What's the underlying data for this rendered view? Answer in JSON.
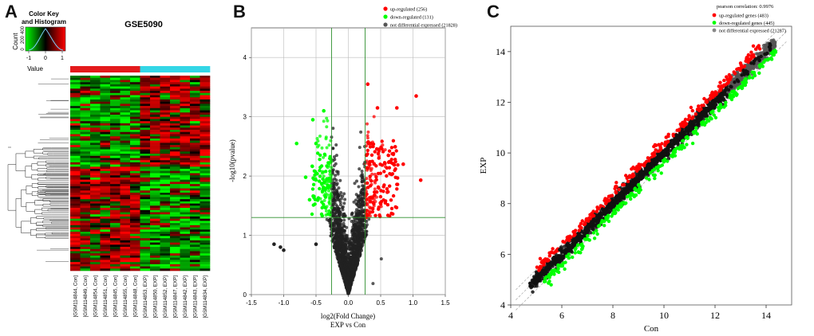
{
  "panels": {
    "a": "A",
    "b": "B",
    "c": "C"
  },
  "chart_data": [
    {
      "panel": "A",
      "type": "heatmap",
      "title": "GSE5090",
      "color_key_title": "Color Key and Histogram",
      "color_key_ylabel": "Count",
      "color_key_xlabel": "Value",
      "color_key_ticks": [
        "-1",
        "0",
        "1"
      ],
      "color_key_count_ticks": [
        "0",
        "200",
        "400"
      ],
      "colors": {
        "low": "#00ff00",
        "mid": "#000000",
        "high": "#ff0000",
        "group_con": "#e41a1c",
        "group_exp": "#33d6e6"
      },
      "samples": [
        {
          "name": "[GSM114844, Con]",
          "group": "Con"
        },
        {
          "name": "[GSM114849, Con]",
          "group": "Con"
        },
        {
          "name": "[GSM114854, Con]",
          "group": "Con"
        },
        {
          "name": "[GSM114851, Con]",
          "group": "Con"
        },
        {
          "name": "[GSM114845, Con]",
          "group": "Con"
        },
        {
          "name": "[GSM114855, Con]",
          "group": "Con"
        },
        {
          "name": "[GSM114848, Con]",
          "group": "Con"
        },
        {
          "name": "[GSM114853, EXP]",
          "group": "EXP"
        },
        {
          "name": "[GSM114850, EXP]",
          "group": "EXP"
        },
        {
          "name": "[GSM114852, EXP]",
          "group": "EXP"
        },
        {
          "name": "[GSM114847, EXP]",
          "group": "EXP"
        },
        {
          "name": "[GSM114842, EXP]",
          "group": "EXP"
        },
        {
          "name": "[GSM114843, EXP]",
          "group": "EXP"
        },
        {
          "name": "[GSM114834, EXP]",
          "group": "EXP"
        }
      ],
      "value_range": [
        -1.5,
        1.5
      ]
    },
    {
      "panel": "B",
      "type": "scatter",
      "subtype": "volcano",
      "xlabel": "log2(Fold Change)",
      "xlabel2": "EXP vs Con",
      "ylabel": "-log10(pvalue)",
      "xlim": [
        -1.5,
        1.5
      ],
      "ylim": [
        0,
        4.5
      ],
      "xticks": [
        "-1.5",
        "-1.0",
        "-0.5",
        "0.0",
        "0.5",
        "1.0",
        "1.5"
      ],
      "yticks": [
        "0",
        "1",
        "2",
        "3",
        "4"
      ],
      "threshold_lines": {
        "x": [
          -0.26,
          0.26
        ],
        "y": 1.3
      },
      "grid": true,
      "legend": [
        {
          "label": "up-regulated (256)",
          "color": "#ff0000"
        },
        {
          "label": "down-regulated (131)",
          "color": "#00ff00"
        },
        {
          "label": "not differential expressed (21828)",
          "color": "#555555"
        }
      ],
      "series": [
        {
          "name": "up-regulated",
          "count": 256,
          "highlight_points": [
            [
              0.3,
              3.55
            ],
            [
              1.05,
              3.35
            ],
            [
              0.75,
              3.15
            ],
            [
              0.45,
              3.15
            ],
            [
              1.12,
              1.93
            ],
            [
              0.62,
              2.35
            ],
            [
              0.85,
              2.2
            ]
          ]
        },
        {
          "name": "down-regulated",
          "count": 131,
          "highlight_points": [
            [
              -0.38,
              3.1
            ],
            [
              -0.55,
              2.95
            ],
            [
              -0.8,
              2.55
            ],
            [
              -0.5,
              2.55
            ],
            [
              -0.66,
              1.98
            ],
            [
              -0.6,
              1.6
            ]
          ]
        },
        {
          "name": "not differential expressed",
          "count": 21828,
          "highlight_points": [
            [
              -1.15,
              0.85
            ],
            [
              -1.05,
              0.8
            ],
            [
              -1.0,
              0.75
            ],
            [
              -0.5,
              0.85
            ]
          ]
        }
      ]
    },
    {
      "panel": "C",
      "type": "scatter",
      "xlabel": "Con",
      "ylabel": "EXP",
      "xlim": [
        4,
        15
      ],
      "ylim": [
        4,
        15
      ],
      "xticks": [
        "4",
        "6",
        "8",
        "10",
        "12",
        "14"
      ],
      "yticks": [
        "4",
        "6",
        "8",
        "10",
        "12",
        "14"
      ],
      "correlation_label": "pearson correlation: 0.9976",
      "legend": [
        {
          "label": "up-regulated genes (483)",
          "color": "#ff0000"
        },
        {
          "label": "down-regulated genes (445)",
          "color": "#00ff00"
        },
        {
          "label": "not differential expressed (21287)",
          "color": "#888888"
        }
      ],
      "series": [
        {
          "name": "up-regulated genes",
          "count": 483,
          "x_range": [
            5.0,
            13.8
          ]
        },
        {
          "name": "down-regulated genes",
          "count": 445,
          "x_range": [
            5.3,
            14.4
          ]
        },
        {
          "name": "not differential expressed",
          "count": 21287,
          "x_range": [
            4.7,
            14.4
          ]
        }
      ]
    }
  ]
}
